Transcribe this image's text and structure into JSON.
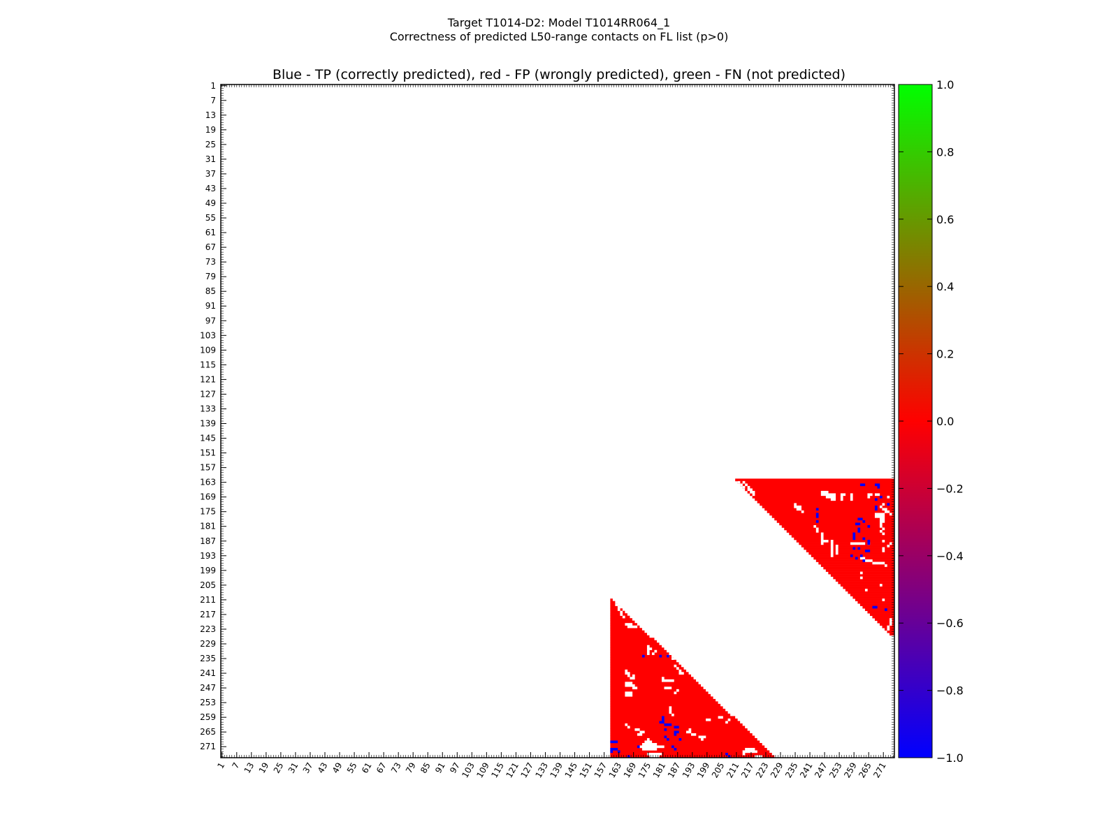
{
  "chart_data": {
    "type": "heatmap",
    "suptitle_lines": [
      "Target T1014-D2: Model T1014RR064_1",
      "Correctness of predicted L50-range contacts on FL list (p>0)"
    ],
    "title": "Blue - TP (correctly predicted), red - FP (wrongly predicted), green - FN (not predicted)",
    "axis_range": [
      1,
      275
    ],
    "x_tick_labels": [
      "1",
      "7",
      "13",
      "19",
      "25",
      "31",
      "37",
      "43",
      "49",
      "55",
      "61",
      "67",
      "73",
      "79",
      "85",
      "91",
      "97",
      "103",
      "109",
      "115",
      "121",
      "127",
      "133",
      "139",
      "145",
      "151",
      "157",
      "163",
      "169",
      "175",
      "181",
      "187",
      "193",
      "199",
      "205",
      "211",
      "217",
      "223",
      "229",
      "235",
      "241",
      "247",
      "253",
      "259",
      "265",
      "271"
    ],
    "y_tick_labels": [
      "1",
      "7",
      "13",
      "19",
      "25",
      "31",
      "37",
      "43",
      "49",
      "55",
      "61",
      "67",
      "73",
      "79",
      "85",
      "91",
      "97",
      "103",
      "109",
      "115",
      "121",
      "127",
      "133",
      "139",
      "145",
      "151",
      "157",
      "163",
      "169",
      "175",
      "181",
      "187",
      "193",
      "199",
      "205",
      "211",
      "217",
      "223",
      "229",
      "235",
      "241",
      "247",
      "253",
      "259",
      "265",
      "271"
    ],
    "colorbar": {
      "min": -1.0,
      "max": 1.0,
      "tick_labels": [
        "1.0",
        "0.8",
        "0.6",
        "0.4",
        "0.2",
        "0.0",
        "−0.2",
        "−0.4",
        "−0.6",
        "−0.8",
        "−1.0"
      ],
      "colors": [
        "#0000ff",
        "#ff0000",
        "#00ff00"
      ]
    },
    "legend": {
      "tp_color": "#0000ff",
      "fp_color": "#ff0000",
      "fn_color": "#00ff00"
    },
    "regions": [
      {
        "name": "upper-right",
        "row_start": 162,
        "row_end": 225,
        "diag_col_start": 211,
        "diag_col_end": 274,
        "col_end": 275,
        "value": 0.0
      },
      {
        "name": "lower-left",
        "row_start": 211,
        "row_end": 275,
        "col_start": 160,
        "diag_col_start": 160,
        "diag_col_end": 226,
        "value": 0.0
      }
    ],
    "white_cells": [
      [
        163,
        212
      ],
      [
        163,
        214
      ],
      [
        164,
        213
      ],
      [
        164,
        215
      ],
      [
        165,
        214
      ],
      [
        165,
        216
      ],
      [
        166,
        216
      ],
      [
        166,
        217
      ],
      [
        167,
        217
      ],
      [
        167,
        218
      ],
      [
        168,
        218
      ],
      [
        167,
        246
      ],
      [
        167,
        247
      ],
      [
        167,
        248
      ],
      [
        168,
        246
      ],
      [
        168,
        247
      ],
      [
        168,
        248
      ],
      [
        168,
        249
      ],
      [
        168,
        250
      ],
      [
        168,
        251
      ],
      [
        168,
        254
      ],
      [
        168,
        255
      ],
      [
        168,
        258
      ],
      [
        169,
        248
      ],
      [
        169,
        249
      ],
      [
        169,
        250
      ],
      [
        169,
        251
      ],
      [
        169,
        254
      ],
      [
        169,
        258
      ],
      [
        170,
        250
      ],
      [
        170,
        251
      ],
      [
        170,
        254
      ],
      [
        170,
        258
      ],
      [
        168,
        265
      ],
      [
        168,
        266
      ],
      [
        169,
        265
      ],
      [
        168,
        268
      ],
      [
        168,
        269
      ],
      [
        169,
        273
      ],
      [
        172,
        235
      ],
      [
        173,
        235
      ],
      [
        173,
        236
      ],
      [
        173,
        237
      ],
      [
        174,
        236
      ],
      [
        174,
        237
      ],
      [
        175,
        238
      ],
      [
        172,
        271
      ],
      [
        173,
        270
      ],
      [
        174,
        271
      ],
      [
        174,
        272
      ],
      [
        175,
        272
      ],
      [
        175,
        273
      ],
      [
        176,
        268
      ],
      [
        176,
        269
      ],
      [
        176,
        270
      ],
      [
        176,
        271
      ],
      [
        176,
        274
      ],
      [
        177,
        268
      ],
      [
        177,
        269
      ],
      [
        177,
        270
      ],
      [
        177,
        271
      ],
      [
        178,
        270
      ],
      [
        178,
        271
      ],
      [
        179,
        270
      ],
      [
        179,
        271
      ],
      [
        180,
        270
      ],
      [
        181,
        270
      ],
      [
        182,
        271
      ],
      [
        183,
        270
      ],
      [
        184,
        271
      ],
      [
        181,
        243
      ],
      [
        182,
        244
      ],
      [
        183,
        244
      ],
      [
        184,
        246
      ],
      [
        185,
        246
      ],
      [
        186,
        246
      ],
      [
        187,
        246
      ],
      [
        188,
        246
      ],
      [
        187,
        247
      ],
      [
        187,
        248
      ],
      [
        187,
        250
      ],
      [
        188,
        250
      ],
      [
        189,
        250
      ],
      [
        190,
        250
      ],
      [
        191,
        250
      ],
      [
        192,
        250
      ],
      [
        193,
        250
      ],
      [
        189,
        252
      ],
      [
        190,
        252
      ],
      [
        191,
        252
      ],
      [
        192,
        252
      ],
      [
        188,
        258
      ],
      [
        188,
        259
      ],
      [
        188,
        260
      ],
      [
        188,
        261
      ],
      [
        188,
        262
      ],
      [
        188,
        263
      ],
      [
        188,
        265
      ],
      [
        187,
        271
      ],
      [
        188,
        274
      ],
      [
        189,
        273
      ],
      [
        190,
        271
      ],
      [
        191,
        271
      ],
      [
        194,
        262
      ],
      [
        194,
        263
      ],
      [
        195,
        264
      ],
      [
        195,
        265
      ],
      [
        195,
        266
      ],
      [
        196,
        267
      ],
      [
        196,
        268
      ],
      [
        196,
        269
      ],
      [
        196,
        270
      ],
      [
        196,
        271
      ],
      [
        197,
        272
      ],
      [
        200,
        262
      ],
      [
        202,
        262
      ],
      [
        207,
        264
      ],
      [
        205,
        270
      ],
      [
        211,
        271
      ],
      [
        219,
        274
      ],
      [
        220,
        274
      ],
      [
        221,
        274
      ],
      [
        222,
        273
      ],
      [
        223,
        273
      ],
      [
        213,
        162
      ],
      [
        214,
        163
      ],
      [
        215,
        163
      ],
      [
        216,
        164
      ],
      [
        217,
        164
      ],
      [
        218,
        165
      ],
      [
        221,
        166
      ],
      [
        221,
        167
      ],
      [
        221,
        168
      ],
      [
        222,
        167
      ],
      [
        222,
        168
      ],
      [
        222,
        169
      ],
      [
        222,
        170
      ],
      [
        230,
        175
      ],
      [
        231,
        175
      ],
      [
        232,
        175
      ],
      [
        233,
        175
      ],
      [
        233,
        177
      ],
      [
        232,
        178
      ],
      [
        231,
        176
      ],
      [
        233,
        184
      ],
      [
        234,
        183
      ],
      [
        235,
        185
      ],
      [
        238,
        186
      ],
      [
        239,
        187
      ],
      [
        240,
        188
      ],
      [
        241,
        188
      ],
      [
        241,
        189
      ],
      [
        240,
        166
      ],
      [
        241,
        166
      ],
      [
        241,
        167
      ],
      [
        242,
        167
      ],
      [
        243,
        168
      ],
      [
        243,
        169
      ],
      [
        242,
        169
      ],
      [
        243,
        181
      ],
      [
        244,
        181
      ],
      [
        244,
        182
      ],
      [
        244,
        183
      ],
      [
        244,
        184
      ],
      [
        244,
        185
      ],
      [
        245,
        166
      ],
      [
        245,
        167
      ],
      [
        245,
        168
      ],
      [
        246,
        166
      ],
      [
        246,
        167
      ],
      [
        246,
        168
      ],
      [
        246,
        169
      ],
      [
        247,
        169
      ],
      [
        247,
        170
      ],
      [
        249,
        166
      ],
      [
        249,
        167
      ],
      [
        249,
        168
      ],
      [
        250,
        166
      ],
      [
        250,
        167
      ],
      [
        250,
        168
      ],
      [
        247,
        182
      ],
      [
        247,
        183
      ],
      [
        247,
        184
      ],
      [
        248,
        187
      ],
      [
        249,
        186
      ],
      [
        255,
        184
      ],
      [
        256,
        184
      ],
      [
        257,
        184
      ],
      [
        258,
        185
      ],
      [
        259,
        204
      ],
      [
        259,
        205
      ],
      [
        260,
        199
      ],
      [
        260,
        200
      ],
      [
        261,
        207
      ],
      [
        260,
        208
      ],
      [
        262,
        166
      ],
      [
        263,
        167
      ],
      [
        264,
        170
      ],
      [
        264,
        171
      ],
      [
        265,
        172
      ],
      [
        265,
        173
      ],
      [
        266,
        171
      ],
      [
        266,
        172
      ],
      [
        264,
        192
      ],
      [
        265,
        191
      ],
      [
        265,
        192
      ],
      [
        266,
        193
      ],
      [
        266,
        194
      ],
      [
        267,
        196
      ],
      [
        267,
        197
      ],
      [
        267,
        198
      ],
      [
        268,
        197
      ],
      [
        268,
        175
      ],
      [
        269,
        174
      ],
      [
        269,
        175
      ],
      [
        269,
        176
      ],
      [
        270,
        173
      ],
      [
        270,
        174
      ],
      [
        270,
        175
      ],
      [
        270,
        176
      ],
      [
        270,
        177
      ],
      [
        270,
        178
      ],
      [
        271,
        172
      ],
      [
        271,
        173
      ],
      [
        271,
        174
      ],
      [
        271,
        175
      ],
      [
        271,
        176
      ],
      [
        271,
        177
      ],
      [
        271,
        178
      ],
      [
        271,
        179
      ],
      [
        271,
        180
      ],
      [
        271,
        181
      ],
      [
        272,
        173
      ],
      [
        272,
        174
      ],
      [
        272,
        175
      ],
      [
        272,
        176
      ],
      [
        272,
        177
      ],
      [
        272,
        178
      ],
      [
        272,
        215
      ],
      [
        272,
        216
      ],
      [
        272,
        217
      ],
      [
        272,
        218
      ],
      [
        273,
        214
      ],
      [
        273,
        215
      ],
      [
        273,
        216
      ],
      [
        273,
        217
      ],
      [
        273,
        218
      ],
      [
        273,
        219
      ],
      [
        274,
        175
      ],
      [
        274,
        176
      ],
      [
        274,
        177
      ],
      [
        274,
        178
      ],
      [
        274,
        179
      ],
      [
        274,
        180
      ],
      [
        275,
        176
      ],
      [
        275,
        177
      ],
      [
        275,
        178
      ],
      [
        275,
        179
      ],
      [
        274,
        214
      ],
      [
        275,
        219
      ],
      [
        275,
        220
      ],
      [
        275,
        221
      ]
    ],
    "tp_cells": [
      [
        164,
        262
      ],
      [
        164,
        263
      ],
      [
        164,
        268
      ],
      [
        164,
        269
      ],
      [
        165,
        269
      ],
      [
        169,
        270
      ],
      [
        170,
        268
      ],
      [
        172,
        273
      ],
      [
        173,
        268
      ],
      [
        174,
        268
      ],
      [
        174,
        244
      ],
      [
        176,
        244
      ],
      [
        177,
        244
      ],
      [
        179,
        244
      ],
      [
        178,
        261
      ],
      [
        178,
        262
      ],
      [
        179,
        263
      ],
      [
        180,
        260
      ],
      [
        180,
        261
      ],
      [
        181,
        265
      ],
      [
        182,
        261
      ],
      [
        183,
        261
      ],
      [
        184,
        259
      ],
      [
        185,
        259
      ],
      [
        186,
        259
      ],
      [
        186,
        263
      ],
      [
        187,
        265
      ],
      [
        188,
        265
      ],
      [
        190,
        259
      ],
      [
        190,
        261
      ],
      [
        191,
        264
      ],
      [
        191,
        265
      ],
      [
        193,
        258
      ],
      [
        193,
        262
      ],
      [
        194,
        260
      ],
      [
        195,
        263
      ],
      [
        214,
        267
      ],
      [
        214,
        268
      ],
      [
        215,
        272
      ],
      [
        234,
        173
      ],
      [
        234,
        180
      ],
      [
        234,
        183
      ],
      [
        259,
        181
      ],
      [
        260,
        181
      ],
      [
        261,
        180
      ],
      [
        261,
        181
      ],
      [
        262,
        182
      ],
      [
        262,
        183
      ],
      [
        262,
        184
      ],
      [
        263,
        186
      ],
      [
        263,
        187
      ],
      [
        264,
        182
      ],
      [
        265,
        186
      ],
      [
        265,
        187
      ],
      [
        266,
        186
      ],
      [
        267,
        182
      ],
      [
        268,
        183
      ],
      [
        268,
        188
      ],
      [
        269,
        160
      ],
      [
        269,
        161
      ],
      [
        269,
        162
      ],
      [
        271,
        171
      ],
      [
        272,
        160
      ],
      [
        272,
        161
      ],
      [
        272,
        162
      ],
      [
        273,
        160
      ],
      [
        273,
        163
      ],
      [
        275,
        167
      ],
      [
        271,
        185
      ],
      [
        272,
        186
      ],
      [
        274,
        207
      ],
      [
        275,
        208
      ]
    ]
  }
}
